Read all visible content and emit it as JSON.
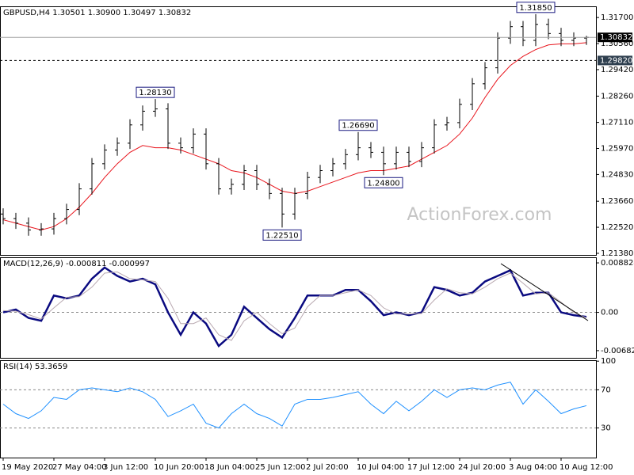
{
  "chart_data": [
    {
      "type": "ohlc",
      "title": "GBPUSD,H4  1.30501 1.30900 1.30497 1.30832",
      "color": "#000000",
      "categories": [
        "19 May 2020",
        null,
        null,
        null,
        "27 May 04:00",
        null,
        null,
        null,
        "3 Jun 12:00",
        null,
        null,
        null,
        "10 Jun 20:00",
        null,
        null,
        null,
        "18 Jun 04:00",
        null,
        null,
        null,
        "25 Jun 12:00",
        null,
        null,
        null,
        "2 Jul 20:00",
        null,
        null,
        null,
        "10 Jul 04:00",
        null,
        null,
        null,
        "17 Jul 12:00",
        null,
        null,
        null,
        "24 Jul 20:00",
        null,
        null,
        null,
        "3 Aug 04:00",
        null,
        null,
        null,
        "10 Aug 12:00",
        null,
        null
      ],
      "open": [
        1.231,
        1.229,
        1.227,
        1.224,
        1.2245,
        1.229,
        1.233,
        1.242,
        1.253,
        1.259,
        1.262,
        1.27,
        1.276,
        1.277,
        1.262,
        1.26,
        1.266,
        1.253,
        1.242,
        1.244,
        1.25,
        1.244,
        1.24,
        1.231,
        1.24,
        1.247,
        1.25,
        1.253,
        1.257,
        1.26,
        1.258,
        1.253,
        1.258,
        1.254,
        1.26,
        1.27,
        1.271,
        1.279,
        1.288,
        1.295,
        1.308,
        1.313,
        1.307,
        1.314,
        1.31,
        1.307,
        1.308
      ],
      "high": [
        1.2335,
        1.2315,
        1.2295,
        1.227,
        1.2315,
        1.2355,
        1.2445,
        1.2555,
        1.2615,
        1.2645,
        1.2725,
        1.2785,
        1.2813,
        1.2795,
        1.2645,
        1.2685,
        1.2685,
        1.2555,
        1.2465,
        1.2525,
        1.2525,
        1.2465,
        1.2425,
        1.2425,
        1.2495,
        1.2525,
        1.2555,
        1.2595,
        1.2669,
        1.2625,
        1.2605,
        1.2605,
        1.2605,
        1.2625,
        1.2725,
        1.2735,
        1.2815,
        1.2905,
        1.2975,
        1.3105,
        1.3155,
        1.3155,
        1.3185,
        1.3165,
        1.3125,
        1.3105,
        1.309
      ],
      "low": [
        1.2265,
        1.2245,
        1.2215,
        1.2215,
        1.222,
        1.2265,
        1.2305,
        1.2395,
        1.2505,
        1.2565,
        1.2595,
        1.2675,
        1.2735,
        1.2595,
        1.2575,
        1.2575,
        1.2505,
        1.2395,
        1.2395,
        1.2415,
        1.2415,
        1.2375,
        1.2251,
        1.2285,
        1.2375,
        1.2445,
        1.2475,
        1.2505,
        1.2545,
        1.2555,
        1.248,
        1.2505,
        1.2515,
        1.2515,
        1.2575,
        1.2675,
        1.2685,
        1.2765,
        1.2855,
        1.2925,
        1.3055,
        1.3045,
        1.3045,
        1.3075,
        1.3045,
        1.3045,
        1.305
      ],
      "close": [
        1.229,
        1.227,
        1.224,
        1.2245,
        1.229,
        1.233,
        1.242,
        1.253,
        1.259,
        1.262,
        1.27,
        1.276,
        1.277,
        1.262,
        1.26,
        1.266,
        1.253,
        1.242,
        1.244,
        1.25,
        1.244,
        1.24,
        1.231,
        1.24,
        1.247,
        1.25,
        1.253,
        1.257,
        1.26,
        1.258,
        1.253,
        1.258,
        1.254,
        1.26,
        1.27,
        1.271,
        1.279,
        1.288,
        1.295,
        1.308,
        1.313,
        1.307,
        1.314,
        1.31,
        1.307,
        1.308,
        1.3083
      ],
      "overlay": {
        "color": "#e8141c",
        "values": [
          1.2285,
          1.227,
          1.2255,
          1.224,
          1.2255,
          1.229,
          1.234,
          1.24,
          1.247,
          1.253,
          1.258,
          1.261,
          1.26,
          1.26,
          1.259,
          1.257,
          1.255,
          1.253,
          1.25,
          1.249,
          1.247,
          1.244,
          1.241,
          1.24,
          1.241,
          1.243,
          1.245,
          1.247,
          1.249,
          1.25,
          1.25,
          1.251,
          1.252,
          1.255,
          1.258,
          1.261,
          1.266,
          1.273,
          1.282,
          1.29,
          1.296,
          1.3,
          1.303,
          1.305,
          1.3055,
          1.3055,
          1.306
        ]
      },
      "ylim": [
        1.2131,
        1.3219
      ],
      "yticks": [
        {
          "value": 1.317,
          "label": "1.31700"
        },
        {
          "value": 1.3056,
          "label": "1.30560"
        },
        {
          "value": 1.2942,
          "label": "1.29420"
        },
        {
          "value": 1.2826,
          "label": "1.28260"
        },
        {
          "value": 1.2711,
          "label": "1.27110"
        },
        {
          "value": 1.2597,
          "label": "1.25970"
        },
        {
          "value": 1.2483,
          "label": "1.24830"
        },
        {
          "value": 1.2366,
          "label": "1.23660"
        },
        {
          "value": 1.2252,
          "label": "1.22520"
        },
        {
          "value": 1.2138,
          "label": "1.21380"
        }
      ],
      "price_lines": [
        {
          "value": 1.30832,
          "label": "1.30832",
          "style": "solid",
          "color": "#a0a0a0",
          "box": "#000000"
        },
        {
          "value": 1.2982,
          "label": "1.29820",
          "style": "dashed",
          "color": "#000000",
          "box": "#2f3f4f"
        }
      ],
      "annotations": [
        {
          "value": 1.2813,
          "label": "1.28130"
        },
        {
          "value": 1.2251,
          "label": "1.22510"
        },
        {
          "value": 1.2669,
          "label": "1.26690"
        },
        {
          "value": 1.248,
          "label": "1.24800"
        },
        {
          "value": 1.3185,
          "label": "1.31850"
        }
      ],
      "watermark": "ActionForex.com"
    },
    {
      "type": "line",
      "title": "MACD(12,26,9) -0.000811 -0.000997",
      "series": [
        {
          "color": "#0a0a80",
          "width": 2.5,
          "values": [
            0.0,
            0.0005,
            -0.001,
            -0.0015,
            0.003,
            0.0025,
            0.003,
            0.006,
            0.008,
            0.0065,
            0.0055,
            0.006,
            0.005,
            0.0,
            -0.004,
            0.0,
            -0.002,
            -0.006,
            -0.004,
            0.001,
            -0.001,
            -0.003,
            -0.0045,
            -0.001,
            0.003,
            0.003,
            0.003,
            0.004,
            0.004,
            0.002,
            -0.0005,
            0.0,
            -0.0005,
            0.0,
            0.0045,
            0.004,
            0.003,
            0.0035,
            0.0055,
            0.0065,
            0.0075,
            0.003,
            0.0035,
            0.0035,
            0.0,
            -0.0005,
            -0.000811
          ]
        },
        {
          "color": "#b8a8b0",
          "width": 1,
          "values": [
            0.0003,
            0.0002,
            -0.0004,
            -0.0012,
            0.0008,
            0.0027,
            0.0028,
            0.0045,
            0.007,
            0.0072,
            0.006,
            0.0058,
            0.0055,
            0.0025,
            -0.002,
            -0.002,
            -0.001,
            -0.004,
            -0.005,
            -0.0015,
            0.0,
            -0.002,
            -0.0038,
            -0.0028,
            0.001,
            0.003,
            0.003,
            0.0035,
            0.004,
            0.003,
            0.0008,
            -0.0003,
            -0.0003,
            -0.0002,
            0.0022,
            0.0042,
            0.0035,
            0.0033,
            0.0045,
            0.006,
            0.007,
            0.0052,
            0.0033,
            0.0035,
            0.0018,
            0.0,
            -0.000997
          ]
        }
      ],
      "ylim": [
        -0.00811,
        0.00982
      ],
      "yticks": [
        0.008824,
        {
          "value": 0,
          "label": "0.00"
        },
        -0.006825
      ],
      "levels": [
        0
      ]
    },
    {
      "type": "line",
      "title": "RSI(14) 53.3659",
      "series": [
        {
          "color": "#1e90ff",
          "width": 1,
          "values": [
            55,
            45,
            40,
            48,
            62,
            60,
            70,
            72,
            70,
            68,
            72,
            68,
            60,
            42,
            48,
            55,
            35,
            30,
            45,
            55,
            45,
            40,
            32,
            55,
            60,
            60,
            62,
            65,
            68,
            55,
            45,
            58,
            48,
            58,
            70,
            62,
            70,
            72,
            70,
            75,
            78,
            55,
            70,
            58,
            45,
            50,
            53.3659
          ]
        }
      ],
      "ylim": [
        -1,
        101
      ],
      "yticks": [
        100,
        70,
        30
      ],
      "levels": [
        70,
        30
      ]
    }
  ]
}
